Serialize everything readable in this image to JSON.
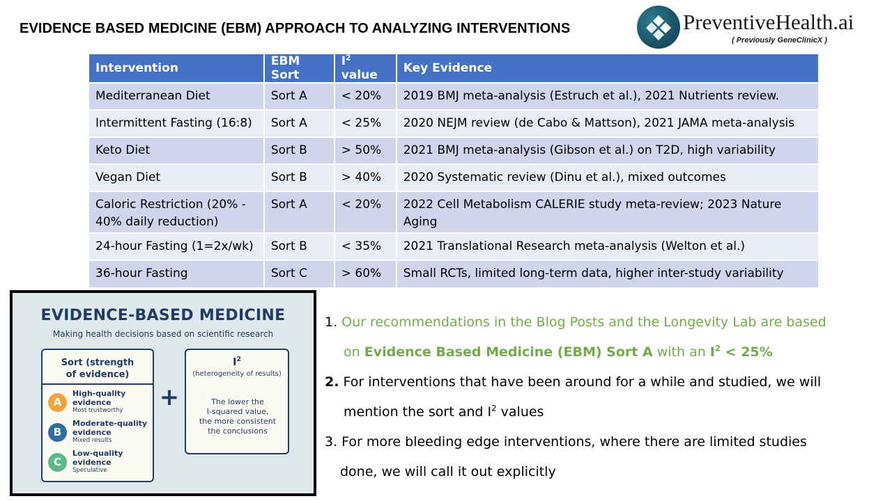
{
  "title": "EVIDENCE BASED MEDICINE (EBM) APPROACH TO ANALYZING INTERVENTIONS",
  "logo": {
    "name": "PreventiveHealth.ai",
    "subtitle": "( Previously  GeneClinicX )"
  },
  "colors": {
    "header_blue": "#4472c4",
    "row_band_dark": "#cfd5ea",
    "row_band_light": "#e9ebf5",
    "green_text": "#70ad47",
    "infographic_navy": "#1f3b66",
    "grade_a": "#f0a43a",
    "grade_b": "#2f6ea3",
    "grade_c": "#5cb886"
  },
  "table": {
    "headers": {
      "intervention": "Intervention",
      "sort": "EBM Sort",
      "i2_base": "I",
      "i2_sup": "2",
      "i2_suffix": " value",
      "evidence": "Key Evidence"
    },
    "rows": [
      {
        "intervention": "Mediterranean Diet",
        "sort": "Sort A",
        "i2": "< 20%",
        "evidence": "2019 BMJ meta-analysis (Estruch et al.), 2021 Nutrients review."
      },
      {
        "intervention": "Intermittent Fasting (16:8)",
        "sort": "Sort A",
        "i2": "< 25%",
        "evidence": "2020 NEJM review (de Cabo & Mattson), 2021 JAMA meta-analysis"
      },
      {
        "intervention": "Keto Diet",
        "sort": "Sort B",
        "i2": "> 50%",
        "evidence": "2021 BMJ meta-analysis (Gibson et al.) on T2D, high variability"
      },
      {
        "intervention": "Vegan Diet",
        "sort": "Sort B",
        "i2": "> 40%",
        "evidence": "2020 Systematic review (Dinu et al.), mixed outcomes"
      },
      {
        "intervention": "Caloric Restriction (20% - 40% daily reduction)",
        "sort": "Sort A",
        "i2": "< 20%",
        "evidence": "2022 Cell Metabolism CALERIE study meta-review; 2023 Nature Aging"
      },
      {
        "intervention": "24-hour Fasting (1=2x/wk)",
        "sort": "Sort B",
        "i2": "< 35%",
        "evidence": "2021 Translational Research meta-analysis (Welton et al.)"
      },
      {
        "intervention": "36-hour Fasting",
        "sort": "Sort C",
        "i2": "> 60%",
        "evidence": "Small RCTs, limited long-term data, higher inter-study variability"
      }
    ]
  },
  "infographic": {
    "title": "EVIDENCE-BASED MEDICINE",
    "subtitle": "Making health decisions based on scientific research",
    "left_card": {
      "heading_line1": "Sort (strength",
      "heading_line2": "of evidence)",
      "grades": [
        {
          "letter": "A",
          "label_line1": "High-quality",
          "label_line2": "evidence",
          "note": "Most trustworthy"
        },
        {
          "letter": "B",
          "label_line1": "Moderate-quality",
          "label_line2": "evidence",
          "note": "Mixed results"
        },
        {
          "letter": "C",
          "label_line1": "Low-quality",
          "label_line2": "evidence",
          "note": "Speculative"
        }
      ]
    },
    "plus": "+",
    "right_card": {
      "heading_base": "I",
      "heading_sup": "2",
      "subheading": "(heterogeneity of results)",
      "body_line1": "The lower the",
      "body_line2": "I-squared value,",
      "body_line3": "the more consistent",
      "body_line4": "the conclusions"
    }
  },
  "notes": {
    "n1_num": "1. ",
    "n1_line1": "Our recommendations in the Blog Posts and the Longevity Lab are based",
    "n1_line2_a": "on ",
    "n1_line2_b": "Evidence Based Medicine (EBM) Sort A",
    "n1_line2_c": " with an ",
    "n1_line2_d_base": "I",
    "n1_line2_d_sup": "2",
    "n1_line2_e": " < 25%",
    "n2_num": "2.",
    "n2_line1": " For interventions that have been around for a while and studied, we will",
    "n2_line2_a": "mention the sort and I",
    "n2_line2_sup": "2",
    "n2_line2_b": " values",
    "n3_line1": "3. For more bleeding edge interventions, where there are limited studies",
    "n3_line2": "done, we will call it out explicitly"
  }
}
